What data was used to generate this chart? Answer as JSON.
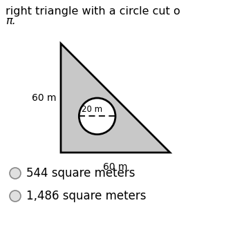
{
  "title_line1": "right triangle with a circle cut o",
  "title_line2": "π.",
  "triangle_color": "#c8c8c8",
  "triangle_edge_color": "#000000",
  "triangle_linewidth": 2.0,
  "circle_color": "#ffffff",
  "circle_edge_color": "#000000",
  "circle_linewidth": 2.0,
  "label_60m_left": "60 m",
  "label_60m_bottom": "60 m",
  "label_20m": "20 m",
  "option1_text": "544 square meters",
  "option2_text": "1,486 square meters",
  "bg_color": "#ffffff",
  "title_fontsize": 11.5,
  "label_fontsize": 10,
  "option_fontsize": 12
}
